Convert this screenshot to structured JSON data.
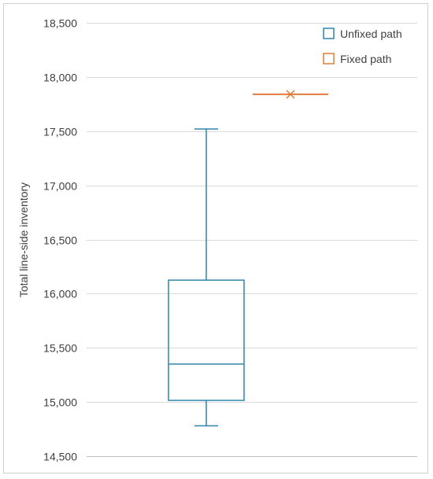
{
  "chart_data": {
    "type": "box",
    "title": "",
    "xlabel": "",
    "ylabel": "Total line-side inventory",
    "ylim": [
      14500,
      18500
    ],
    "ytick_step": 500,
    "y_tick_labels": [
      "14,500",
      "15,000",
      "15,500",
      "16,000",
      "16,500",
      "17,000",
      "17,500",
      "18,000",
      "18,500"
    ],
    "grid": "horizontal",
    "legend_position": "top-right",
    "series": [
      {
        "name": "Unfixed path",
        "color": "#2E86AB",
        "min": 14780,
        "q1": 15015,
        "median": 15350,
        "q3": 16125,
        "max": 17520
      },
      {
        "name": "Fixed path",
        "color": "#E07B39",
        "min": 17840,
        "q1": 17840,
        "median": 17840,
        "q3": 17840,
        "max": 17840,
        "mean": 17840
      }
    ]
  }
}
